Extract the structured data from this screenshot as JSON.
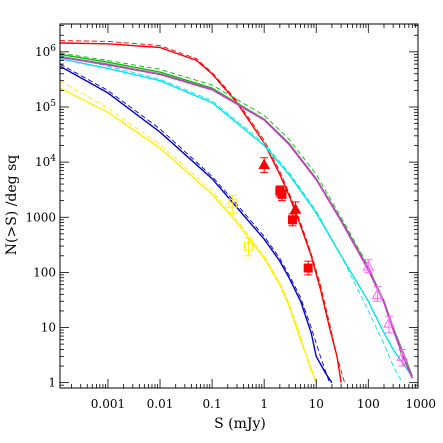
{
  "chart_data": {
    "type": "line",
    "xlabel": "S (mJy)",
    "ylabel": "N(>S) /deg sq",
    "x_scale": "log",
    "y_scale": "log",
    "xlim": [
      0.00012,
      900
    ],
    "ylim": [
      0.8,
      3200000
    ],
    "grid": false,
    "x_ticks": [
      {
        "value": 0.001,
        "label": "0.001"
      },
      {
        "value": 0.01,
        "label": "0.01"
      },
      {
        "value": 0.1,
        "label": "0.1"
      },
      {
        "value": 1,
        "label": "1"
      },
      {
        "value": 10,
        "label": "10"
      },
      {
        "value": 100,
        "label": "100"
      },
      {
        "value": 1000,
        "label": "1000"
      }
    ],
    "y_ticks": [
      {
        "value": 1,
        "label": "1",
        "sup": ""
      },
      {
        "value": 10,
        "label": "10",
        "sup": ""
      },
      {
        "value": 100,
        "label": "100",
        "sup": ""
      },
      {
        "value": 1000,
        "label": "1000",
        "sup": ""
      },
      {
        "value": 10000,
        "label": "10",
        "sup": "4"
      },
      {
        "value": 100000,
        "label": "10",
        "sup": "5"
      },
      {
        "value": 1000000,
        "label": "10",
        "sup": "6"
      }
    ],
    "series": [
      {
        "color": "#ff0000",
        "style": "solid",
        "x": [
          0.00012,
          0.001,
          0.01,
          0.05,
          0.1,
          0.3,
          1,
          2,
          3,
          5,
          8,
          12,
          18,
          25,
          30
        ],
        "y": [
          1450000,
          1400000,
          1200000,
          700000,
          400000,
          120000,
          22000,
          6000,
          2500,
          700,
          200,
          50,
          10,
          3,
          1
        ]
      },
      {
        "color": "#ff0000",
        "style": "dashed",
        "x": [
          0.00012,
          0.001,
          0.01,
          0.05,
          0.1,
          0.3,
          1,
          2,
          3,
          5,
          8,
          12,
          18,
          25,
          35
        ],
        "y": [
          1600000,
          1550000,
          1300000,
          750000,
          420000,
          130000,
          25000,
          6800,
          2800,
          800,
          220,
          60,
          12,
          3,
          1
        ]
      },
      {
        "color": "#0000cc",
        "style": "solid",
        "x": [
          0.00012,
          0.001,
          0.01,
          0.1,
          0.3,
          1,
          2,
          3,
          5,
          8,
          10,
          15,
          20
        ],
        "y": [
          550000,
          180000,
          35000,
          5000,
          1500,
          400,
          160,
          80,
          30,
          8,
          3,
          1.5,
          1
        ]
      },
      {
        "color": "#0000cc",
        "style": "dashed",
        "x": [
          0.00012,
          0.001,
          0.01,
          0.1,
          0.3,
          1,
          2,
          3,
          5,
          8,
          12,
          18
        ],
        "y": [
          600000,
          200000,
          40000,
          5500,
          1700,
          450,
          180,
          90,
          35,
          10,
          3,
          1
        ]
      },
      {
        "color": "#ffee00",
        "style": "solid",
        "x": [
          0.00012,
          0.001,
          0.01,
          0.1,
          0.3,
          1,
          2,
          3,
          5,
          10
        ],
        "y": [
          220000,
          80000,
          18000,
          2600,
          800,
          180,
          60,
          25,
          6,
          1
        ]
      },
      {
        "color": "#ffee00",
        "style": "dashed",
        "x": [
          0.00012,
          0.001,
          0.01,
          0.1,
          0.3,
          1,
          2,
          3,
          5,
          8
        ],
        "y": [
          300000,
          95000,
          21000,
          3000,
          900,
          200,
          65,
          28,
          7,
          1.5
        ]
      },
      {
        "color": "#00e5e5",
        "style": "solid",
        "x": [
          0.00012,
          0.001,
          0.01,
          0.1,
          1,
          3,
          10,
          30,
          100,
          200,
          300,
          500,
          700
        ],
        "y": [
          750000,
          500000,
          300000,
          120000,
          20000,
          6000,
          1200,
          200,
          30,
          8,
          4,
          2,
          1.3
        ]
      },
      {
        "color": "#00e5e5",
        "style": "dashed",
        "x": [
          0.00012,
          0.001,
          0.01,
          0.1,
          1,
          3,
          10,
          30,
          100,
          200,
          300,
          450
        ],
        "y": [
          850000,
          550000,
          320000,
          130000,
          22000,
          6500,
          1300,
          200,
          20,
          5,
          2,
          1
        ]
      },
      {
        "color": "#00c000",
        "style": "solid",
        "x": [
          0.00012,
          0.001,
          0.01,
          0.1,
          1,
          3,
          10,
          30,
          100,
          200,
          300,
          500,
          700
        ],
        "y": [
          900000,
          650000,
          430000,
          220000,
          60000,
          22000,
          5000,
          900,
          120,
          30,
          10,
          3,
          1.3
        ]
      },
      {
        "color": "#00c000",
        "style": "dashed",
        "x": [
          0.00012,
          0.001,
          0.01,
          0.1,
          1,
          3,
          10,
          30,
          100,
          200,
          300,
          500
        ],
        "y": [
          950000,
          700000,
          480000,
          250000,
          70000,
          26000,
          6000,
          1000,
          130,
          30,
          10,
          2
        ]
      },
      {
        "color": "#888888",
        "style": "solid",
        "x": [
          0.00012,
          0.001,
          0.01,
          0.1,
          1,
          3,
          10,
          30,
          100,
          200,
          300,
          500,
          700
        ],
        "y": [
          820000,
          600000,
          400000,
          210000,
          60000,
          22000,
          5000,
          900,
          120,
          30,
          10,
          3,
          1.3
        ]
      },
      {
        "color": "#cc33cc",
        "style": "solid",
        "x": [
          0.00012,
          0.001,
          0.01,
          0.1,
          1,
          3,
          10,
          30,
          100,
          200,
          300,
          500,
          700
        ],
        "y": [
          800000,
          580000,
          390000,
          205000,
          58000,
          21000,
          4800,
          850,
          110,
          28,
          9,
          2.5,
          1.2
        ]
      }
    ],
    "points": [
      {
        "marker": "triangle-filled",
        "color": "#ff0000",
        "x": 1.0,
        "y": 9000,
        "yerr_low": 6500,
        "yerr_high": 12000
      },
      {
        "marker": "triangle-filled",
        "color": "#ff0000",
        "x": 4.0,
        "y": 1400,
        "yerr_low": 1000,
        "yerr_high": 1900
      },
      {
        "marker": "square-filled",
        "color": "#ff0000",
        "x": 2.0,
        "y": 3000,
        "yerr_low": 2400,
        "yerr_high": 3700
      },
      {
        "marker": "square-filled",
        "color": "#ff0000",
        "x": 2.2,
        "y": 2600,
        "yerr_low": 2000,
        "yerr_high": 3200
      },
      {
        "marker": "square-filled",
        "color": "#ff0000",
        "x": 3.5,
        "y": 900,
        "yerr_low": 700,
        "yerr_high": 1150
      },
      {
        "marker": "square-filled",
        "color": "#ff0000",
        "x": 7.0,
        "y": 120,
        "yerr_low": 90,
        "yerr_high": 160
      },
      {
        "marker": "triangle-open",
        "color": "#ff66ff",
        "x": 100,
        "y": 130,
        "yerr_low": 100,
        "yerr_high": 170
      },
      {
        "marker": "triangle-open",
        "color": "#ff66ff",
        "x": 150,
        "y": 40,
        "yerr_low": 30,
        "yerr_high": 55
      },
      {
        "marker": "triangle-open",
        "color": "#ff66ff",
        "x": 250,
        "y": 12,
        "yerr_low": 8,
        "yerr_high": 16
      },
      {
        "marker": "triangle-open",
        "color": "#ff66ff",
        "x": 450,
        "y": 3,
        "yerr_low": 2,
        "yerr_high": 4
      },
      {
        "marker": "square-open",
        "color": "#ffee00",
        "x": 0.25,
        "y": 1800,
        "yerr_low": 1200,
        "yerr_high": 2500
      },
      {
        "marker": "square-open",
        "color": "#ffee00",
        "x": 0.5,
        "y": 300,
        "yerr_low": 200,
        "yerr_high": 420
      }
    ]
  }
}
